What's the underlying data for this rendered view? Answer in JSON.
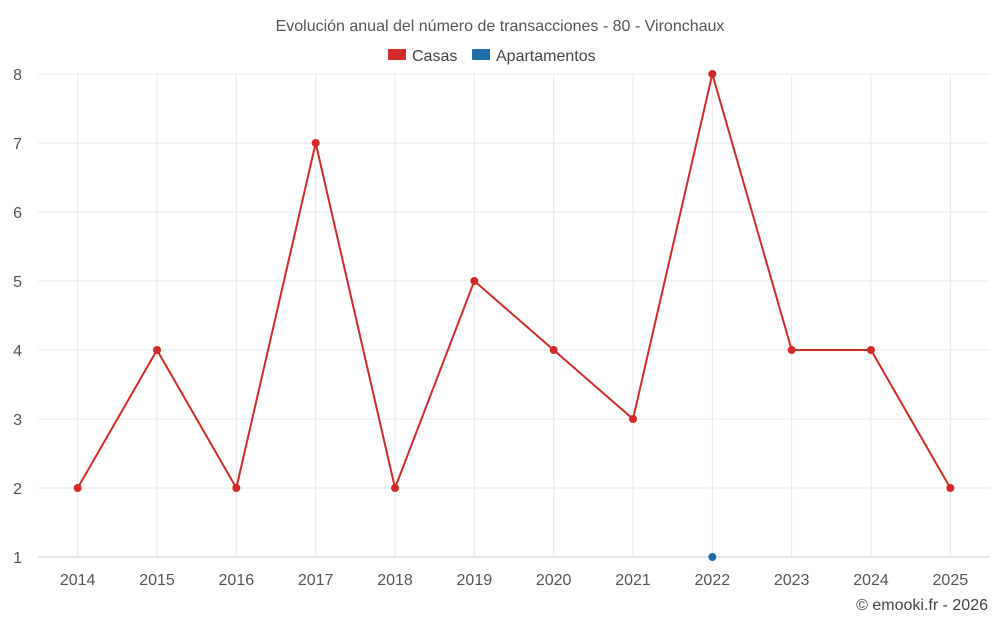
{
  "chart_data": {
    "type": "line",
    "title": "Evolución anual del número de transacciones - 80 - Vironchaux",
    "xlabel": "",
    "ylabel": "",
    "categories": [
      "2014",
      "2015",
      "2016",
      "2017",
      "2018",
      "2019",
      "2020",
      "2021",
      "2022",
      "2023",
      "2024",
      "2025"
    ],
    "y_ticks": [
      1,
      2,
      3,
      4,
      5,
      6,
      7,
      8
    ],
    "ylim": [
      1,
      8
    ],
    "grid": true,
    "legend_position": "top-center",
    "series": [
      {
        "name": "Casas",
        "color": "#d42a2a",
        "values": [
          2,
          4,
          2,
          7,
          2,
          5,
          4,
          3,
          8,
          4,
          4,
          2
        ]
      },
      {
        "name": "Apartamentos",
        "color": "#1f6ea8",
        "values": [
          null,
          null,
          null,
          null,
          null,
          null,
          null,
          null,
          1,
          null,
          null,
          null
        ]
      }
    ]
  },
  "credit": "© emooki.fr - 2026"
}
